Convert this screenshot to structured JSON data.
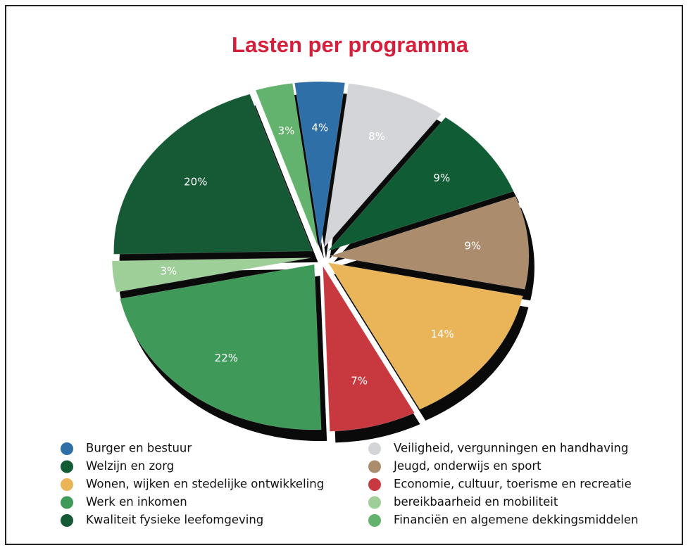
{
  "chart_data": {
    "type": "pie",
    "title": "Lasten per programma",
    "categories": [
      "Burger en bestuur",
      "Veiligheid, vergunningen en handhaving",
      "Welzijn en zorg",
      "Jeugd, onderwijs en sport",
      "Wonen, wijken en stedelijke ontwikkeling",
      "Economie, cultuur, toerisme en recreatie",
      "Werk en inkomen",
      "bereikbaarheid en mobiliteit",
      "Kwaliteit fysieke leefomgeving",
      "Financiën en algemene dekkingsmiddelen"
    ],
    "values": [
      4,
      8,
      9,
      9,
      14,
      7,
      22,
      3,
      20,
      3
    ],
    "value_labels": [
      "4%",
      "8%",
      "9%",
      "9%",
      "14%",
      "7%",
      "22%",
      "3%",
      "20%",
      "3%"
    ],
    "colors": [
      "#2f6fa8",
      "#d3d5d8",
      "#0f5c35",
      "#ab8c6c",
      "#eab458",
      "#c8393f",
      "#3f9a5a",
      "#9fcf99",
      "#155a35",
      "#63b36e"
    ],
    "legend": "bottom"
  }
}
